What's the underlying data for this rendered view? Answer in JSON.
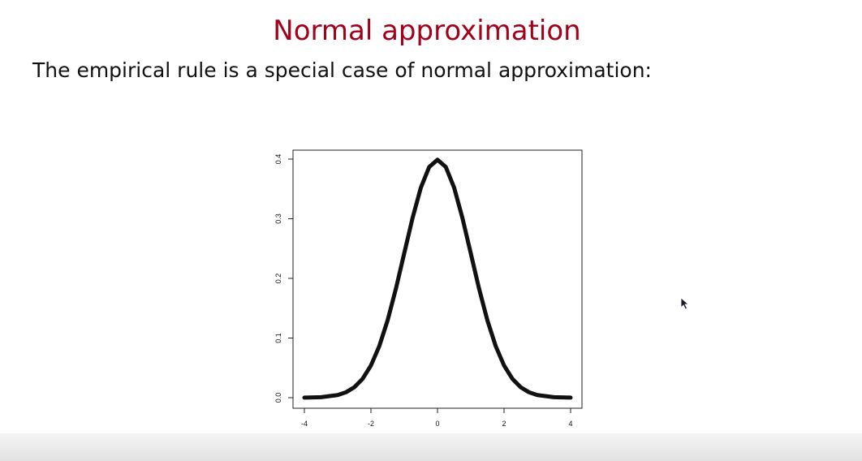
{
  "slide": {
    "title": "Normal approximation",
    "subtitle": "The empirical rule is a special case of normal approximation:",
    "title_color": "#a3001a"
  },
  "chart_data": {
    "type": "line",
    "title": "",
    "xlabel": "",
    "ylabel": "",
    "xlim": [
      -4,
      4
    ],
    "ylim": [
      0,
      0.4
    ],
    "x_ticks": [
      -4,
      -2,
      0,
      2,
      4
    ],
    "x_tick_labels": [
      "-4",
      "-2",
      "0",
      "2",
      "4"
    ],
    "y_ticks": [
      0,
      0.1,
      0.2,
      0.3,
      0.4
    ],
    "y_tick_labels": [
      "0.0",
      "0.1",
      "0.2",
      "0.3",
      "0.4"
    ],
    "grid": false,
    "series": [
      {
        "x": [
          -4,
          -3.5,
          -3,
          -2.75,
          -2.5,
          -2.25,
          -2,
          -1.75,
          -1.5,
          -1.25,
          -1,
          -0.75,
          -0.5,
          -0.25,
          0,
          0.25,
          0.5,
          0.75,
          1,
          1.25,
          1.5,
          1.75,
          2,
          2.25,
          2.5,
          2.75,
          3,
          3.5,
          4
        ],
        "y": [
          0.0001,
          0.0009,
          0.0044,
          0.0091,
          0.0175,
          0.0317,
          0.054,
          0.0863,
          0.1295,
          0.1826,
          0.242,
          0.3011,
          0.3521,
          0.3867,
          0.3989,
          0.3867,
          0.3521,
          0.3011,
          0.242,
          0.1826,
          0.1295,
          0.0863,
          0.054,
          0.0317,
          0.0175,
          0.0091,
          0.0044,
          0.0009,
          0.0001
        ],
        "color": "#111111"
      }
    ]
  }
}
